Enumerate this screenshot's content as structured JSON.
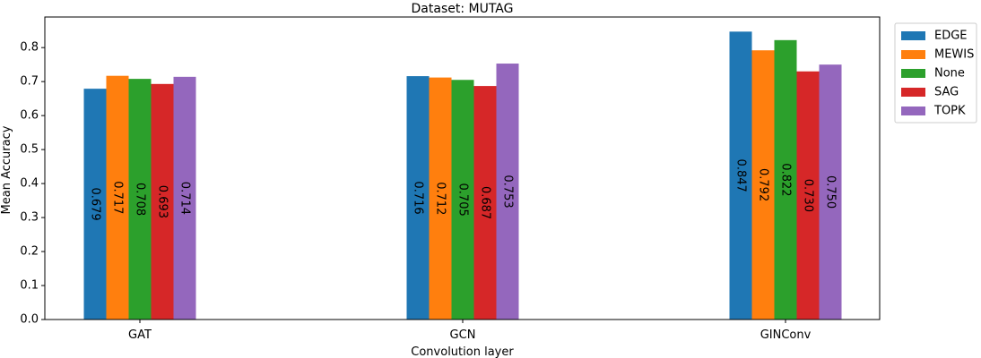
{
  "chart_data": {
    "type": "bar",
    "title": "Dataset: MUTAG",
    "xlabel": "Convolution  layer",
    "ylabel": "Mean Accuracy",
    "categories": [
      "GAT",
      "GCN",
      "GINConv"
    ],
    "series": [
      {
        "name": "EDGE",
        "color": "#1f77b4",
        "values": [
          0.679,
          0.716,
          0.847
        ],
        "labels": [
          "0.679",
          "0.716",
          "0.847"
        ]
      },
      {
        "name": "MEWIS",
        "color": "#ff7f0e",
        "values": [
          0.717,
          0.712,
          0.792
        ],
        "labels": [
          "0.717",
          "0.712",
          "0.792"
        ]
      },
      {
        "name": "None",
        "color": "#2ca02c",
        "values": [
          0.708,
          0.705,
          0.822
        ],
        "labels": [
          "0.708",
          "0.705",
          "0.822"
        ]
      },
      {
        "name": "SAG",
        "color": "#d62728",
        "values": [
          0.693,
          0.687,
          0.73
        ],
        "labels": [
          "0.693",
          "0.687",
          "0.730"
        ]
      },
      {
        "name": "TOPK",
        "color": "#9467bd",
        "values": [
          0.714,
          0.753,
          0.75
        ],
        "labels": [
          "0.714",
          "0.753",
          "0.750"
        ]
      }
    ],
    "ylim": [
      0,
      0.89
    ],
    "yticks": [
      0.0,
      0.1,
      0.2,
      0.3,
      0.4,
      0.5,
      0.6,
      0.7,
      0.8
    ],
    "ytick_labels": [
      "0.0",
      "0.1",
      "0.2",
      "0.3",
      "0.4",
      "0.5",
      "0.6",
      "0.7",
      "0.8"
    ],
    "grid": false,
    "legend_position": "outside-right-top"
  }
}
